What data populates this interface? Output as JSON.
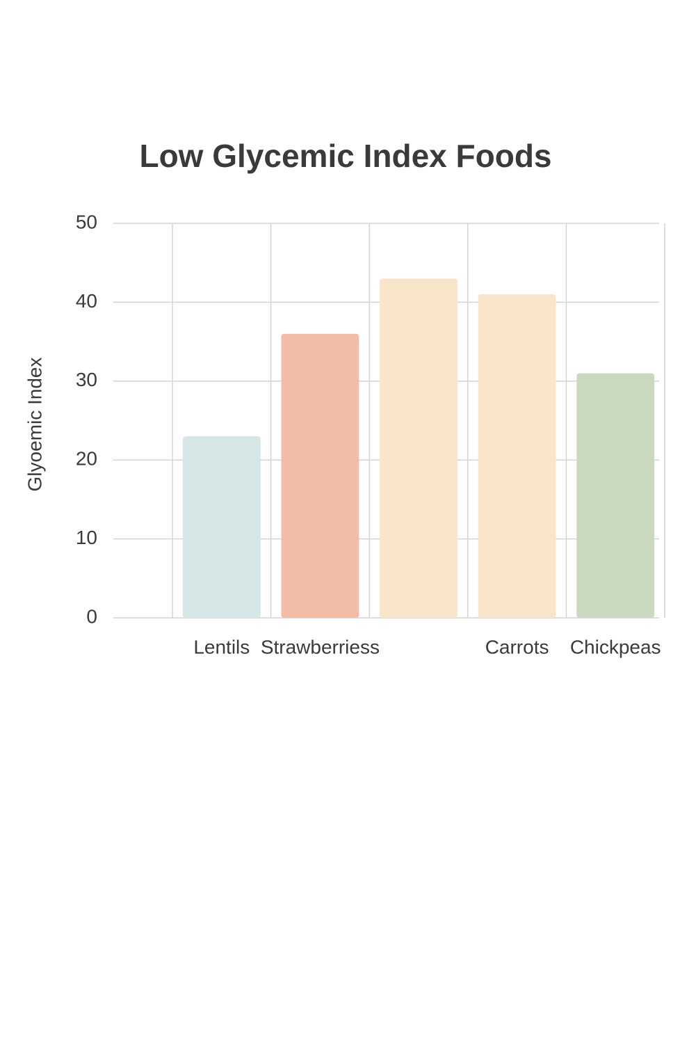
{
  "chart_data": {
    "type": "bar",
    "title": "Low Glycemic Index Foods",
    "y_label": "Glyoemic Index",
    "categories": [
      "Lentils",
      "Strawberriess",
      null,
      "Carrots",
      "Chickpeas"
    ],
    "values": [
      23,
      36,
      43,
      41,
      31
    ],
    "colors": [
      "#d6e6e6",
      "#f2bda8",
      "#f9e6c8",
      "#f9e6c8",
      "#c9d9bf"
    ],
    "ylim": [
      0,
      50
    ],
    "yticks": [
      0,
      10,
      20,
      30,
      40,
      50
    ],
    "grid": true
  }
}
